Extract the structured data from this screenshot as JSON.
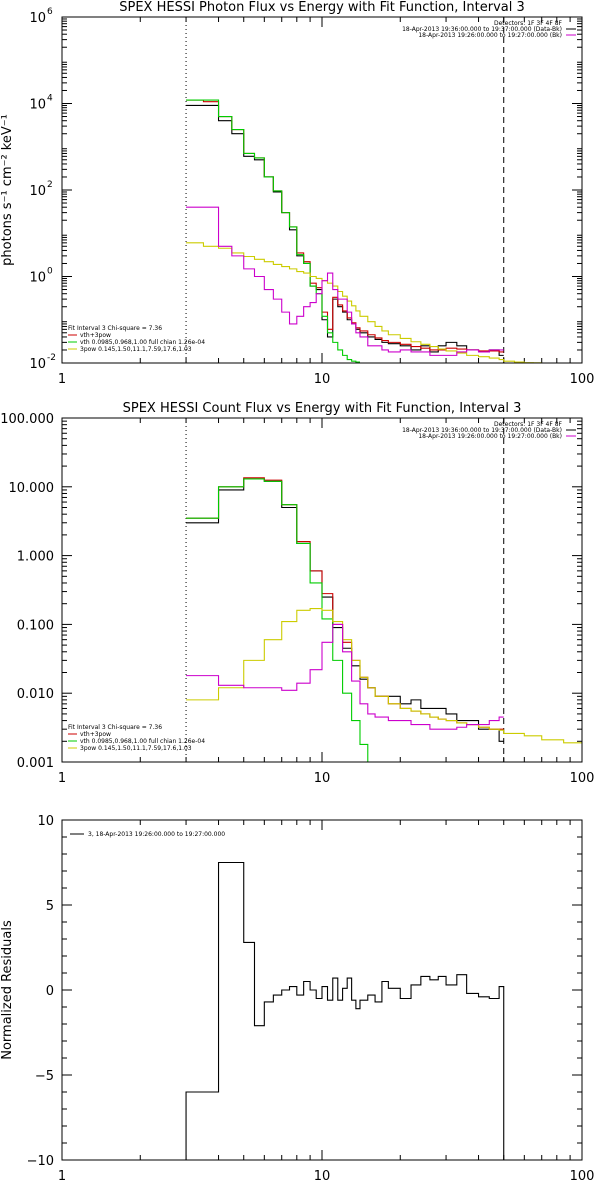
{
  "chart_data": [
    {
      "type": "line",
      "title": "SPEX HESSI Photon Flux vs Energy with Fit Function, Interval 3",
      "ylabel": "photons s⁻¹ cm⁻² keV⁻¹",
      "xlabel": "",
      "xscale": "log",
      "yscale": "log",
      "xlim": [
        1,
        100
      ],
      "ylim": [
        0.01,
        1000000
      ],
      "x_ticks": [
        1,
        10,
        100
      ],
      "x_tick_labels": [
        "1",
        "10",
        "100"
      ],
      "y_ticks": [
        0.01,
        1,
        100,
        10000,
        1000000
      ],
      "y_tick_labels": [
        "10",
        "10",
        "10",
        "10",
        "10"
      ],
      "y_tick_exps": [
        "-2",
        "0",
        "2",
        "4",
        "6"
      ],
      "vlines": [
        {
          "x": 3,
          "style": "dotted"
        },
        {
          "x": 50,
          "style": "dashed"
        }
      ],
      "legend_top": [
        {
          "text": "Detectors: 1F 3F 4F 8F",
          "color": ""
        },
        {
          "text": "18-Apr-2013 19:36:00.000 to 19:37:00.000 (Data-Bk)",
          "color": "#000000"
        },
        {
          "text": "18-Apr-2013 19:26:00.000 to 19:27:00.000 (Bk)",
          "color": "#cc00cc"
        }
      ],
      "legend_bottom": [
        {
          "text": "Fit Interval 3   Chi-square = 7.36",
          "color": ""
        },
        {
          "text": "vth+3pow",
          "color": "#cc0000"
        },
        {
          "text": "vth 0.0985,0.968,1.00   full chian 1.26e-04",
          "color": "#00cc00"
        },
        {
          "text": "3pow 0.145,1.50,11.1,7.59,17.6,1.03",
          "color": "#cccc00"
        }
      ],
      "series": [
        {
          "color": "#000000",
          "edges": [
            3,
            3.5,
            4,
            4.5,
            5,
            5.5,
            6,
            6.5,
            7,
            7.5,
            8,
            8.5,
            9,
            9.5,
            10,
            10.5,
            11,
            11.5,
            12,
            12.5,
            13,
            13.5,
            14,
            15,
            16,
            17,
            18,
            20,
            22,
            24,
            26,
            28,
            30,
            33,
            36,
            40,
            44,
            48,
            50
          ],
          "values": [
            9000,
            9000,
            4000,
            2000,
            600,
            500,
            200,
            90,
            30,
            12,
            3,
            2,
            0.6,
            0.5,
            0.1,
            0.04,
            0.3,
            0.2,
            0.15,
            0.1,
            0.08,
            0.06,
            0.05,
            0.04,
            0.035,
            0.03,
            0.028,
            0.025,
            0.02,
            0.025,
            0.018,
            0.025,
            0.03,
            0.025,
            0.02,
            0.018,
            0.02,
            0.015
          ]
        },
        {
          "color": "#cc0000",
          "edges": [
            3,
            3.5,
            4,
            4.5,
            5,
            5.5,
            6,
            6.5,
            7,
            7.5,
            8,
            8.5,
            9,
            9.5,
            10,
            10.5,
            11,
            11.5,
            12,
            12.5,
            13,
            13.5,
            14,
            15,
            16,
            17,
            18,
            20,
            22,
            24,
            26,
            28,
            30,
            33,
            36,
            40,
            44,
            48,
            50
          ],
          "values": [
            12000,
            11000,
            5000,
            2500,
            700,
            550,
            200,
            95,
            30,
            14,
            3.5,
            2.2,
            0.7,
            0.55,
            0.15,
            0.06,
            0.33,
            0.22,
            0.16,
            0.11,
            0.085,
            0.065,
            0.055,
            0.045,
            0.038,
            0.033,
            0.03,
            0.027,
            0.024,
            0.022,
            0.02,
            0.02,
            0.022,
            0.021,
            0.02,
            0.019,
            0.019,
            0.018
          ]
        },
        {
          "color": "#00cc00",
          "edges": [
            3,
            3.5,
            4,
            4.5,
            5,
            5.5,
            6,
            6.5,
            7,
            7.5,
            8,
            8.5,
            9,
            9.5,
            10,
            10.5,
            11,
            11.5,
            12,
            12.5,
            13,
            13.5,
            14
          ],
          "values": [
            12000,
            12000,
            5000,
            2500,
            700,
            550,
            200,
            95,
            30,
            14,
            3.2,
            2.0,
            0.6,
            0.4,
            0.12,
            0.05,
            0.03,
            0.02,
            0.015,
            0.012,
            0.011,
            0.0105
          ]
        },
        {
          "color": "#cccc00",
          "edges": [
            3,
            3.5,
            4,
            4.5,
            5,
            5.5,
            6,
            6.5,
            7,
            7.5,
            8,
            8.5,
            9,
            9.5,
            10,
            10.5,
            11,
            11.5,
            12,
            12.5,
            13,
            13.5,
            14,
            15,
            16,
            17,
            18,
            20,
            22,
            24,
            26,
            28,
            30,
            33,
            36,
            40,
            44,
            48,
            50,
            55,
            60,
            65,
            70
          ],
          "values": [
            6,
            5,
            4.5,
            3.5,
            2.9,
            2.5,
            2.2,
            1.9,
            1.7,
            1.5,
            1.3,
            1.2,
            1.0,
            0.9,
            0.8,
            0.7,
            0.6,
            0.45,
            0.35,
            0.27,
            0.21,
            0.16,
            0.12,
            0.09,
            0.07,
            0.055,
            0.045,
            0.037,
            0.031,
            0.027,
            0.024,
            0.021,
            0.019,
            0.017,
            0.015,
            0.014,
            0.013,
            0.012,
            0.011,
            0.0105,
            0.0102,
            0.0101
          ]
        },
        {
          "color": "#cc00cc",
          "edges": [
            3,
            3.5,
            4,
            4.5,
            5,
            5.5,
            6,
            6.5,
            7,
            7.5,
            8,
            8.5,
            9,
            9.5,
            10,
            10.5,
            11,
            11.5,
            12,
            12.5,
            13,
            13.5,
            14,
            15,
            16,
            17,
            18,
            20,
            22,
            24,
            26,
            28,
            30,
            33,
            36,
            40,
            44,
            48,
            50
          ],
          "values": [
            40,
            40,
            5,
            3,
            1.5,
            1.0,
            0.5,
            0.3,
            0.15,
            0.08,
            0.12,
            0.2,
            0.25,
            0.4,
            0.8,
            1.2,
            0.5,
            0.3,
            0.3,
            0.15,
            0.08,
            0.05,
            0.04,
            0.025,
            0.025,
            0.02,
            0.018,
            0.02,
            0.018,
            0.018,
            0.015,
            0.015,
            0.015,
            0.018,
            0.02,
            0.018,
            0.02,
            0.02
          ]
        }
      ]
    },
    {
      "type": "line",
      "title": "SPEX HESSI Count Flux vs Energy with Fit Function, Interval 3",
      "ylabel": "",
      "xlabel": "",
      "xscale": "log",
      "yscale": "log",
      "xlim": [
        1,
        100
      ],
      "ylim": [
        0.001,
        100
      ],
      "x_ticks": [
        1,
        10,
        100
      ],
      "x_tick_labels": [
        "1",
        "10",
        "100"
      ],
      "y_ticks": [
        0.001,
        0.01,
        0.1,
        1,
        10,
        100
      ],
      "y_tick_labels": [
        "0.001",
        "0.010",
        "0.100",
        "1.000",
        "10.000",
        "100.000"
      ],
      "vlines": [
        {
          "x": 3,
          "style": "dotted"
        },
        {
          "x": 50,
          "style": "dashed"
        }
      ],
      "legend_top": [
        {
          "text": "Detectors: 1F 3F 4F 8F",
          "color": ""
        },
        {
          "text": "18-Apr-2013 19:36:00.000 to 19:37:00.000 (Data-Bk)",
          "color": "#000000"
        },
        {
          "text": "18-Apr-2013 19:26:00.000 to 19:27:00.000 (Bk)",
          "color": "#cc00cc"
        }
      ],
      "legend_bottom": [
        {
          "text": "Fit Interval 3   Chi-square = 7.36",
          "color": ""
        },
        {
          "text": "vth+3pow",
          "color": "#cc0000"
        },
        {
          "text": "vth 0.0985,0.968,1.00   full chian 1.26e-04",
          "color": "#00cc00"
        },
        {
          "text": "3pow 0.145,1.50,11.1,7.59,17.6,1.03",
          "color": "#cccc00"
        }
      ],
      "series": [
        {
          "color": "#000000",
          "edges": [
            3,
            4,
            5,
            6,
            7,
            8,
            9,
            10,
            11,
            12,
            13,
            14,
            15,
            16,
            18,
            20,
            22,
            24,
            26,
            28,
            30,
            33,
            36,
            40,
            44,
            48,
            50
          ],
          "values": [
            3.0,
            9.0,
            13.0,
            12.0,
            5.0,
            1.5,
            0.6,
            0.25,
            0.09,
            0.045,
            0.025,
            0.016,
            0.012,
            0.009,
            0.009,
            0.007,
            0.008,
            0.006,
            0.006,
            0.006,
            0.005,
            0.004,
            0.004,
            0.003,
            0.003,
            0.002
          ]
        },
        {
          "color": "#cc0000",
          "edges": [
            3,
            4,
            5,
            6,
            7,
            8,
            9,
            10,
            11,
            12,
            13,
            14,
            15,
            16,
            18,
            20,
            22,
            24,
            26,
            28,
            30,
            33,
            36,
            40,
            44,
            48,
            50
          ],
          "values": [
            3.5,
            10.0,
            13.5,
            12.5,
            5.5,
            1.6,
            0.6,
            0.28,
            0.1,
            0.055,
            0.03,
            0.017,
            0.012,
            0.009,
            0.007,
            0.006,
            0.0055,
            0.005,
            0.0045,
            0.0042,
            0.004,
            0.0037,
            0.0035,
            0.0032,
            0.003,
            0.003
          ]
        },
        {
          "color": "#00cc00",
          "edges": [
            3,
            4,
            5,
            6,
            7,
            8,
            9,
            10,
            11,
            12,
            13,
            14,
            15,
            16
          ],
          "values": [
            3.5,
            10.0,
            13.0,
            12.0,
            5.5,
            1.5,
            0.4,
            0.12,
            0.03,
            0.01,
            0.004,
            0.0018,
            0.001
          ]
        },
        {
          "color": "#cccc00",
          "edges": [
            3,
            4,
            5,
            6,
            7,
            8,
            9,
            10,
            11,
            12,
            13,
            14,
            15,
            16,
            18,
            20,
            22,
            24,
            26,
            28,
            30,
            33,
            36,
            40,
            44,
            48,
            50,
            60,
            70,
            85,
            100
          ],
          "values": [
            0.008,
            0.012,
            0.03,
            0.06,
            0.11,
            0.16,
            0.17,
            0.16,
            0.11,
            0.06,
            0.03,
            0.017,
            0.012,
            0.009,
            0.007,
            0.006,
            0.0055,
            0.005,
            0.0045,
            0.0042,
            0.004,
            0.0037,
            0.0035,
            0.0032,
            0.003,
            0.0029,
            0.0026,
            0.0024,
            0.0021,
            0.0019
          ]
        },
        {
          "color": "#cc00cc",
          "edges": [
            3,
            4,
            5,
            6,
            7,
            8,
            9,
            10,
            11,
            12,
            13,
            14,
            15,
            16,
            18,
            20,
            22,
            24,
            26,
            28,
            30,
            33,
            36,
            40,
            44,
            48,
            50
          ],
          "values": [
            0.018,
            0.013,
            0.012,
            0.012,
            0.011,
            0.014,
            0.022,
            0.055,
            0.1,
            0.04,
            0.015,
            0.007,
            0.005,
            0.0045,
            0.004,
            0.004,
            0.0035,
            0.0035,
            0.003,
            0.003,
            0.003,
            0.0032,
            0.0035,
            0.0035,
            0.004,
            0.0045
          ]
        }
      ]
    },
    {
      "type": "line",
      "title": "",
      "ylabel": "Normalized Residuals",
      "xlabel": "",
      "xscale": "log",
      "yscale": "linear",
      "xlim": [
        1,
        100
      ],
      "ylim": [
        -10,
        10
      ],
      "x_ticks": [
        1,
        10,
        100
      ],
      "x_tick_labels": [
        "1",
        "10",
        "100"
      ],
      "y_ticks": [
        -10,
        -5,
        0,
        5,
        10
      ],
      "y_tick_labels": [
        "−10",
        "−5",
        "0",
        "5",
        "10"
      ],
      "legend_top_left": [
        {
          "text": "3, 18-Apr-2013 19:26:00.000 to 19:27:00.000",
          "color": "#000000"
        }
      ],
      "series": [
        {
          "color": "#000000",
          "edges": [
            3,
            4,
            4.5,
            5,
            5.5,
            6,
            6.5,
            7,
            7.5,
            8,
            8.5,
            9,
            9.5,
            10,
            10.5,
            11,
            11.5,
            12,
            12.5,
            13,
            13.5,
            14,
            15,
            16,
            17,
            18,
            20,
            22,
            24,
            26,
            28,
            30,
            33,
            36,
            40,
            44,
            48,
            50
          ],
          "values": [
            -6.0,
            7.5,
            7.5,
            2.8,
            -2.1,
            -0.7,
            -0.3,
            0,
            0.2,
            -0.3,
            0.5,
            0,
            -0.5,
            0.2,
            -0.6,
            0.7,
            -0.6,
            0.1,
            0.7,
            -0.6,
            -1.1,
            -0.6,
            -0.3,
            -0.7,
            0.5,
            0.1,
            -0.5,
            0.3,
            0.8,
            0.6,
            0.8,
            0.3,
            0.9,
            -0.2,
            -0.4,
            -0.5,
            0.2
          ],
          "open_ends": true
        }
      ]
    }
  ]
}
